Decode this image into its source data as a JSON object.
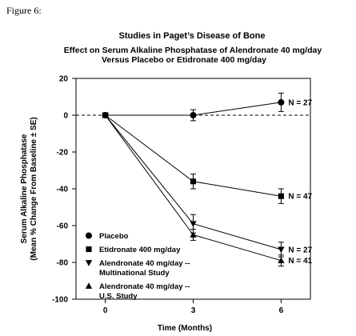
{
  "figure_label": "Figure 6:",
  "chart_data": {
    "type": "line",
    "title": "Studies in Paget’s Disease of Bone",
    "subtitle_lines": [
      "Effect on Serum Alkaline Phosphatase of Alendronate 40 mg/day",
      "Versus Placebo or Etidronate 400 mg/day"
    ],
    "ylabel_lines": [
      "Serum Alkaline Phosphatase",
      "(Mean % Change From Baseline ± SE)"
    ],
    "xlabel": "Time (Months)",
    "x_ticks": [
      0,
      3,
      6
    ],
    "y_ticks": [
      20,
      0,
      -20,
      -40,
      -60,
      -80,
      -100
    ],
    "xlim": [
      -1,
      7
    ],
    "ylim": [
      -100,
      20
    ],
    "reference_line": {
      "y": 0,
      "style": "dashed"
    },
    "series": [
      {
        "name": "Placebo",
        "marker": "circle",
        "x": [
          0,
          3,
          6
        ],
        "y": [
          0,
          0,
          7
        ],
        "se": [
          0,
          3,
          5
        ],
        "end_label": "N = 27"
      },
      {
        "name": "Etidronate 400 mg/day",
        "marker": "square",
        "x": [
          0,
          3,
          6
        ],
        "y": [
          0,
          -36,
          -44
        ],
        "se": [
          0,
          4,
          4
        ],
        "end_label": "N = 47"
      },
      {
        "name": "Alendronate 40 mg/day -- Multinational Study",
        "marker": "triangle-down",
        "x": [
          0,
          3,
          6
        ],
        "y": [
          0,
          -59,
          -73
        ],
        "se": [
          0,
          5,
          4
        ],
        "end_label": "N = 27"
      },
      {
        "name": "Alendronate 40 mg/day -- U.S. Study",
        "marker": "triangle-up",
        "x": [
          0,
          3,
          6
        ],
        "y": [
          0,
          -65,
          -79
        ],
        "se": [
          0,
          3,
          3
        ],
        "end_label": "N = 41"
      }
    ],
    "legend": {
      "placement": "bottom-left",
      "entries": [
        {
          "marker": "circle",
          "lines": [
            "Placebo"
          ]
        },
        {
          "marker": "square",
          "lines": [
            "Etidronate 400 mg/day"
          ]
        },
        {
          "marker": "triangle-down",
          "lines": [
            "Alendronate 40 mg/day --",
            "Multinational Study"
          ]
        },
        {
          "marker": "triangle-up",
          "lines": [
            "Alendronate 40 mg/day --",
            "U.S. Study"
          ]
        }
      ]
    }
  }
}
